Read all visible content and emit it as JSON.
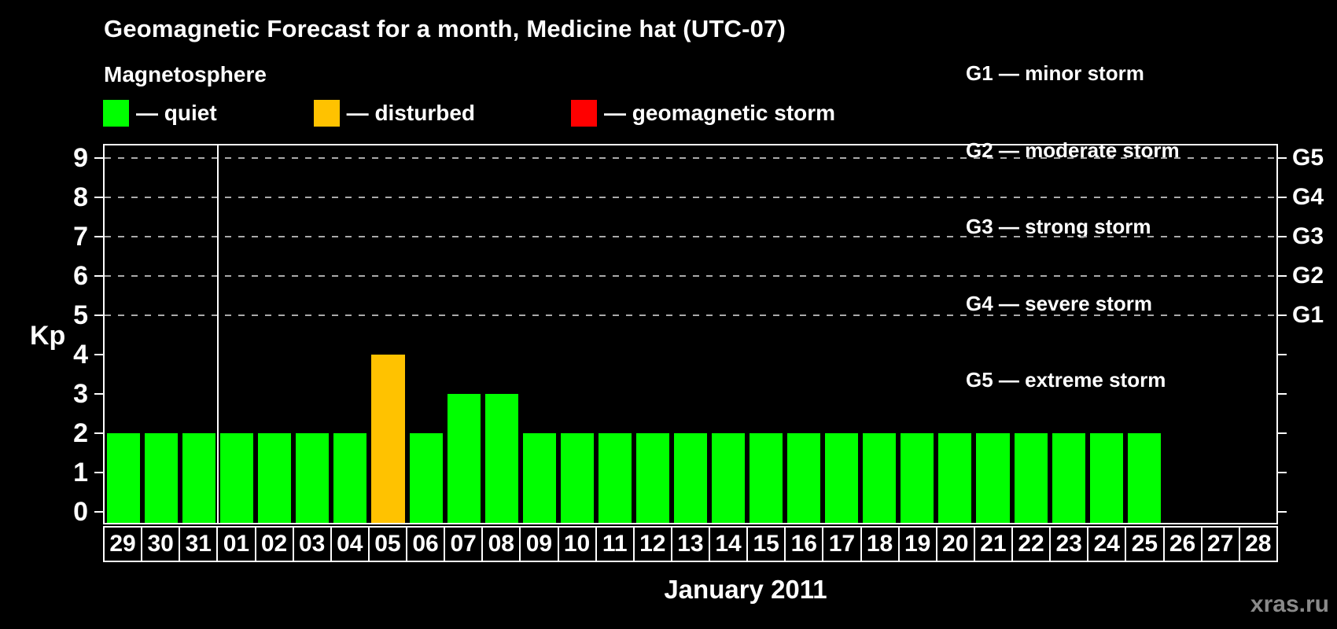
{
  "title": "Geomagnetic Forecast for a month, Medicine hat (UTC-07)",
  "subtitle": "Magnetosphere",
  "legend": {
    "items": [
      {
        "name": "quiet",
        "label": "— quiet",
        "color": "#00ff00"
      },
      {
        "name": "disturbed",
        "label": "— disturbed",
        "color": "#ffc200"
      },
      {
        "name": "storm",
        "label": "— geomagnetic storm",
        "color": "#ff0000"
      }
    ]
  },
  "storm_scale": {
    "items": [
      "G1 — minor storm",
      "G2 — moderate storm",
      "G3 — strong storm",
      "G4 — severe storm",
      "G5 — extreme storm"
    ]
  },
  "watermark": "xras.ru",
  "chart_data": {
    "type": "bar",
    "title": "Geomagnetic Forecast for a month, Medicine hat (UTC-07)",
    "subtitle": "Magnetosphere",
    "xlabel": "January 2011",
    "ylabel": "Kp",
    "ylim": [
      0,
      9
    ],
    "yticks": [
      0,
      1,
      2,
      3,
      4,
      5,
      6,
      7,
      8,
      9
    ],
    "gridlines_at": [
      5,
      6,
      7,
      8,
      9
    ],
    "grid_style": "dashed horizontal, gray",
    "legend_position": "top",
    "right_ticks": [
      {
        "kp": 5,
        "label": "G1"
      },
      {
        "kp": 6,
        "label": "G2"
      },
      {
        "kp": 7,
        "label": "G3"
      },
      {
        "kp": 8,
        "label": "G4"
      },
      {
        "kp": 9,
        "label": "G5"
      }
    ],
    "separator_after_index": 3,
    "palette": {
      "quiet": "#00ff00",
      "disturbed": "#ffc200",
      "storm": "#ff0000"
    },
    "categories": [
      "29",
      "30",
      "31",
      "01",
      "02",
      "03",
      "04",
      "05",
      "06",
      "07",
      "08",
      "09",
      "10",
      "11",
      "12",
      "13",
      "14",
      "15",
      "16",
      "17",
      "18",
      "19",
      "20",
      "21",
      "22",
      "23",
      "24",
      "25",
      "26",
      "27",
      "28"
    ],
    "bars": [
      {
        "day": "29",
        "kp": 2,
        "status": "quiet"
      },
      {
        "day": "30",
        "kp": 2,
        "status": "quiet"
      },
      {
        "day": "31",
        "kp": 2,
        "status": "quiet"
      },
      {
        "day": "01",
        "kp": 2,
        "status": "quiet"
      },
      {
        "day": "02",
        "kp": 2,
        "status": "quiet"
      },
      {
        "day": "03",
        "kp": 2,
        "status": "quiet"
      },
      {
        "day": "04",
        "kp": 2,
        "status": "quiet"
      },
      {
        "day": "05",
        "kp": 4,
        "status": "disturbed"
      },
      {
        "day": "06",
        "kp": 2,
        "status": "quiet"
      },
      {
        "day": "07",
        "kp": 3,
        "status": "quiet"
      },
      {
        "day": "08",
        "kp": 3,
        "status": "quiet"
      },
      {
        "day": "09",
        "kp": 2,
        "status": "quiet"
      },
      {
        "day": "10",
        "kp": 2,
        "status": "quiet"
      },
      {
        "day": "11",
        "kp": 2,
        "status": "quiet"
      },
      {
        "day": "12",
        "kp": 2,
        "status": "quiet"
      },
      {
        "day": "13",
        "kp": 2,
        "status": "quiet"
      },
      {
        "day": "14",
        "kp": 2,
        "status": "quiet"
      },
      {
        "day": "15",
        "kp": 2,
        "status": "quiet"
      },
      {
        "day": "16",
        "kp": 2,
        "status": "quiet"
      },
      {
        "day": "17",
        "kp": 2,
        "status": "quiet"
      },
      {
        "day": "18",
        "kp": 2,
        "status": "quiet"
      },
      {
        "day": "19",
        "kp": 2,
        "status": "quiet"
      },
      {
        "day": "20",
        "kp": 2,
        "status": "quiet"
      },
      {
        "day": "21",
        "kp": 2,
        "status": "quiet"
      },
      {
        "day": "22",
        "kp": 2,
        "status": "quiet"
      },
      {
        "day": "23",
        "kp": 2,
        "status": "quiet"
      },
      {
        "day": "24",
        "kp": 2,
        "status": "quiet"
      },
      {
        "day": "25",
        "kp": 2,
        "status": "quiet"
      },
      {
        "day": "26",
        "kp": null,
        "status": null
      },
      {
        "day": "27",
        "kp": null,
        "status": null
      },
      {
        "day": "28",
        "kp": null,
        "status": null
      }
    ]
  }
}
